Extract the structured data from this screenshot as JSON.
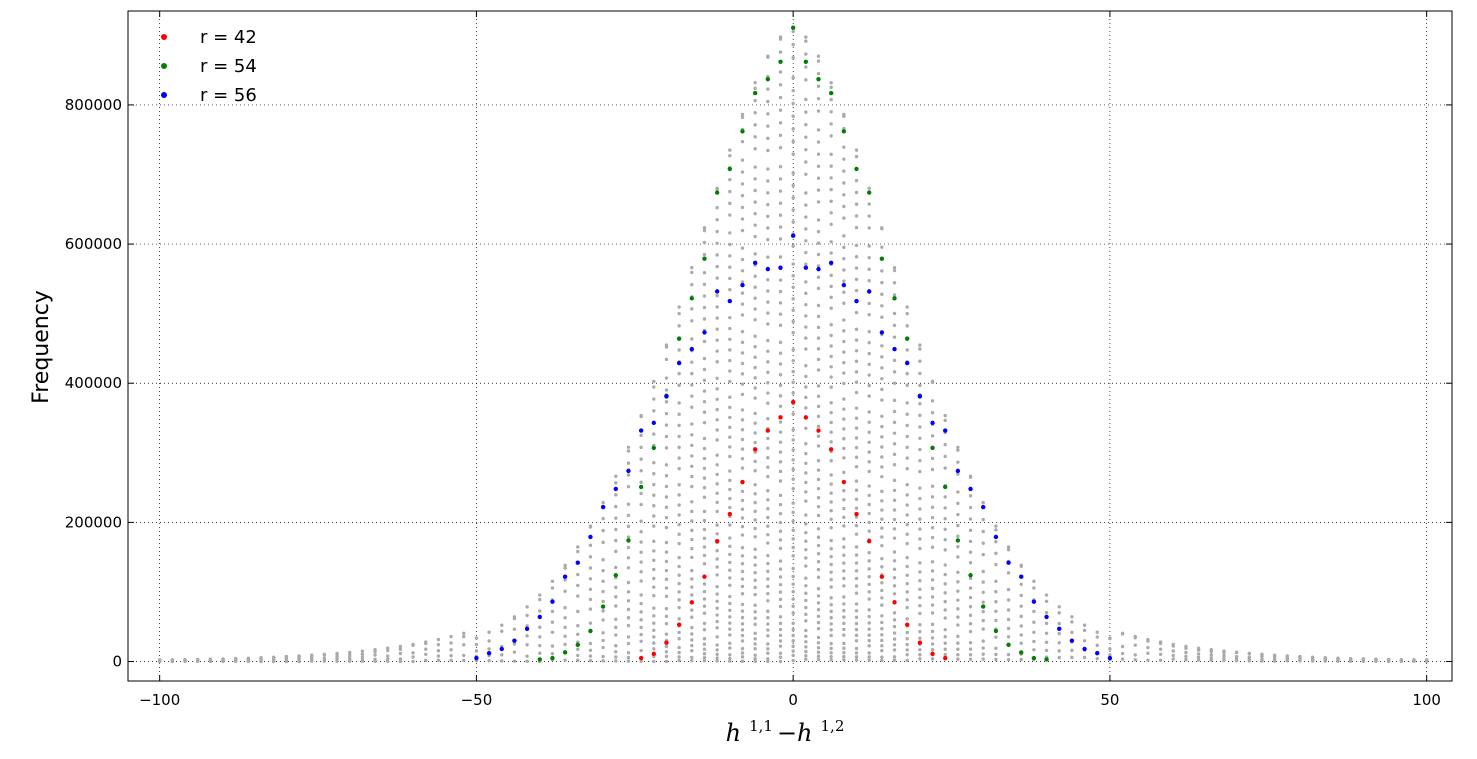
{
  "chart_data": {
    "type": "scatter",
    "title": "",
    "ylabel": "Frequency",
    "xlabel": {
      "base1": "h",
      "sup1": "1,1",
      "minus": "−",
      "base2": "h",
      "sup2": "1,2"
    },
    "xlim": [
      -105,
      104
    ],
    "ylim": [
      -28000,
      935000
    ],
    "xticks": [
      -100,
      -50,
      0,
      50,
      100
    ],
    "xtick_labels": [
      "−100",
      "−50",
      "0",
      "50",
      "100"
    ],
    "yticks": [
      0,
      200000,
      400000,
      600000,
      800000
    ],
    "ytick_labels": [
      "0",
      "200000",
      "400000",
      "600000",
      "800000"
    ],
    "grid": "dotted",
    "legend": "top-left",
    "background_color": "#aaaaaa",
    "series": [
      {
        "name": "r = 42",
        "color": "#ff0000",
        "points": [
          [
            -24,
            5000
          ],
          [
            -22,
            11000
          ],
          [
            -20,
            27000
          ],
          [
            -18,
            53000
          ],
          [
            -16,
            85000
          ],
          [
            -14,
            122000
          ],
          [
            -12,
            173000
          ],
          [
            -10,
            212000
          ],
          [
            -8,
            258000
          ],
          [
            -6,
            305000
          ],
          [
            -4,
            332000
          ],
          [
            -2,
            351000
          ],
          [
            0,
            373000
          ],
          [
            2,
            351000
          ],
          [
            4,
            332000
          ],
          [
            6,
            305000
          ],
          [
            8,
            258000
          ],
          [
            10,
            212000
          ],
          [
            12,
            173000
          ],
          [
            14,
            122000
          ],
          [
            16,
            85000
          ],
          [
            18,
            53000
          ],
          [
            20,
            27000
          ],
          [
            22,
            11000
          ],
          [
            24,
            5000
          ]
        ]
      },
      {
        "name": "r = 54",
        "color": "#008000",
        "points": [
          [
            -40,
            3000
          ],
          [
            -38,
            5000
          ],
          [
            -36,
            13000
          ],
          [
            -34,
            24000
          ],
          [
            -32,
            44000
          ],
          [
            -30,
            79000
          ],
          [
            -28,
            124000
          ],
          [
            -26,
            174000
          ],
          [
            -24,
            251000
          ],
          [
            -22,
            307000
          ],
          [
            -20,
            382000
          ],
          [
            -18,
            464000
          ],
          [
            -16,
            522000
          ],
          [
            -14,
            579000
          ],
          [
            -12,
            674000
          ],
          [
            -10,
            708000
          ],
          [
            -8,
            762000
          ],
          [
            -6,
            817000
          ],
          [
            -4,
            837000
          ],
          [
            -2,
            862000
          ],
          [
            0,
            911000
          ],
          [
            2,
            862000
          ],
          [
            4,
            837000
          ],
          [
            6,
            817000
          ],
          [
            8,
            762000
          ],
          [
            10,
            708000
          ],
          [
            12,
            674000
          ],
          [
            14,
            579000
          ],
          [
            16,
            522000
          ],
          [
            18,
            464000
          ],
          [
            20,
            382000
          ],
          [
            22,
            307000
          ],
          [
            24,
            251000
          ],
          [
            26,
            174000
          ],
          [
            28,
            124000
          ],
          [
            30,
            79000
          ],
          [
            32,
            44000
          ],
          [
            34,
            24000
          ],
          [
            36,
            13000
          ],
          [
            38,
            5000
          ],
          [
            40,
            3000
          ]
        ]
      },
      {
        "name": "r = 56",
        "color": "#0000ff",
        "points": [
          [
            -50,
            5000
          ],
          [
            -48,
            12000
          ],
          [
            -46,
            18000
          ],
          [
            -44,
            30000
          ],
          [
            -42,
            47000
          ],
          [
            -40,
            64000
          ],
          [
            -38,
            86000
          ],
          [
            -36,
            122000
          ],
          [
            -34,
            142000
          ],
          [
            -32,
            179000
          ],
          [
            -30,
            222000
          ],
          [
            -28,
            248000
          ],
          [
            -26,
            274000
          ],
          [
            -24,
            332000
          ],
          [
            -22,
            343000
          ],
          [
            -20,
            381000
          ],
          [
            -18,
            429000
          ],
          [
            -16,
            449000
          ],
          [
            -14,
            473000
          ],
          [
            -12,
            532000
          ],
          [
            -10,
            518000
          ],
          [
            -8,
            541000
          ],
          [
            -6,
            573000
          ],
          [
            -4,
            564000
          ],
          [
            -2,
            566000
          ],
          [
            0,
            612000
          ],
          [
            2,
            566000
          ],
          [
            4,
            564000
          ],
          [
            6,
            573000
          ],
          [
            8,
            541000
          ],
          [
            10,
            518000
          ],
          [
            12,
            532000
          ],
          [
            14,
            473000
          ],
          [
            16,
            449000
          ],
          [
            18,
            429000
          ],
          [
            20,
            381000
          ],
          [
            22,
            343000
          ],
          [
            24,
            332000
          ],
          [
            26,
            274000
          ],
          [
            28,
            248000
          ],
          [
            30,
            222000
          ],
          [
            32,
            179000
          ],
          [
            34,
            142000
          ],
          [
            36,
            122000
          ],
          [
            38,
            86000
          ],
          [
            40,
            64000
          ],
          [
            42,
            47000
          ],
          [
            44,
            30000
          ],
          [
            46,
            18000
          ],
          [
            48,
            12000
          ],
          [
            50,
            5000
          ]
        ]
      }
    ]
  }
}
